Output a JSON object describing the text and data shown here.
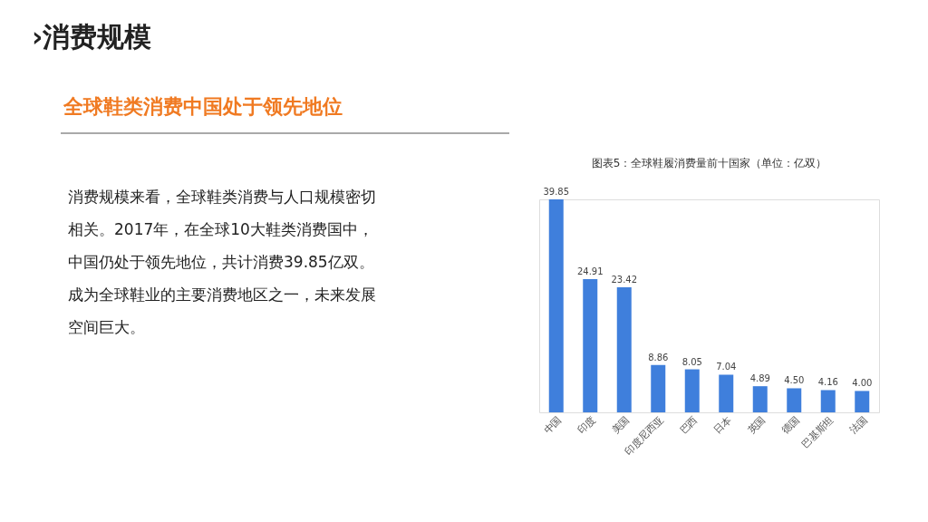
{
  "chart_data": {
    "type": "bar",
    "title": "图表5：全球鞋履消费量前十国家（单位：亿双）",
    "categories": [
      "中国",
      "印度",
      "美国",
      "印度尼西亚",
      "巴西",
      "日本",
      "英国",
      "德国",
      "巴基斯坦",
      "法国"
    ],
    "values": [
      39.85,
      24.91,
      23.42,
      8.86,
      8.05,
      7.04,
      4.89,
      4.5,
      4.16,
      4.0
    ],
    "color": "#3f7fdc",
    "value_labels": [
      "39.85",
      "24.91",
      "23.42",
      "8.86",
      "8.05",
      "7.04",
      "4.89",
      "4.50",
      "4.16",
      "4.00"
    ],
    "annotations": [
      "›消费规模",
      "全球鞋类消费中国处于领先地位",
      "消费规模来看，全球鞋类消费与人口规模密切",
      "相关。2017年，在全球10大鞋类消费国中，",
      "中国仍处于领先地位，共计消费39.85亿双。",
      "成为全球鞋业的主要消费地区之一，未来发展",
      "空间巨大。"
    ]
  }
}
